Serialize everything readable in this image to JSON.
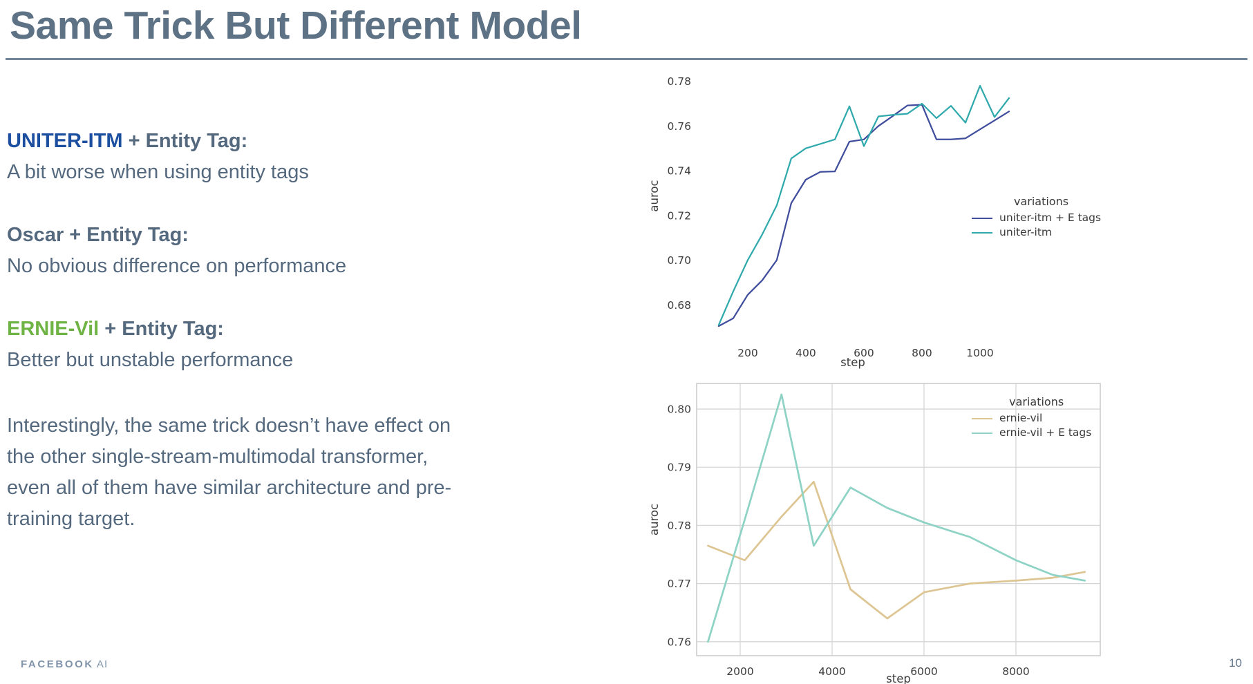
{
  "slide": {
    "title": "Same Trick But Different Model",
    "page_number": "10",
    "footer_brand_bold": "FACEBOOK",
    "footer_brand_light": "AI",
    "accent_colors": {
      "title_slate": "#5e7286",
      "uniter_blue": "#1d4fa0",
      "ernie_green": "#6fb344",
      "body_slate": "#54687e",
      "rule_gray": "#71869a"
    }
  },
  "text_blocks": [
    {
      "model": "UNITER-ITM",
      "heading_rest": " + Entity Tag:",
      "body": "A bit worse when using entity tags"
    },
    {
      "model": "Oscar",
      "heading_rest": " + Entity Tag:",
      "body": "No obvious difference on performance"
    },
    {
      "model": "ERNIE-Vil",
      "heading_rest": " + Entity Tag:",
      "body": "Better but unstable performance"
    }
  ],
  "paragraph": "Interestingly, the same trick doesn’t have effect on the other single-stream-multimodal transformer, even all of them have similar architecture and pre-training target.",
  "chart_data": [
    {
      "id": "uniter-chart",
      "type": "line",
      "title": "",
      "xlabel": "step",
      "ylabel": "auroc",
      "xlim": [
        24,
        1100
      ],
      "ylim": [
        0.6705,
        0.787
      ],
      "grid": false,
      "legend_position": "center right",
      "xticks": [
        {
          "v": 200,
          "t": "200"
        },
        {
          "v": 400,
          "t": "400"
        },
        {
          "v": 600,
          "t": "600"
        },
        {
          "v": 800,
          "t": "800"
        },
        {
          "v": 1000,
          "t": "1000"
        }
      ],
      "yticks": [
        {
          "v": 0.68,
          "t": "0.68"
        },
        {
          "v": 0.7,
          "t": "0.70"
        },
        {
          "v": 0.72,
          "t": "0.72"
        },
        {
          "v": 0.74,
          "t": "0.74"
        },
        {
          "v": 0.76,
          "t": "0.76"
        },
        {
          "v": 0.78,
          "t": "0.78"
        }
      ],
      "legend": {
        "title": "variations",
        "entries": [
          {
            "label": "uniter-itm + E tags",
            "color": "#3f4d9c"
          },
          {
            "label": "uniter-itm",
            "color": "#2fa9ac"
          }
        ]
      },
      "series": [
        {
          "name": "uniter-itm + E tags",
          "color": "#3f4d9c",
          "x": [
            100,
            150,
            200,
            250,
            300,
            350,
            400,
            450,
            500,
            550,
            600,
            650,
            700,
            750,
            800,
            850,
            900,
            950,
            1000,
            1050,
            1100
          ],
          "y": [
            0.6705,
            0.674,
            0.6845,
            0.691,
            0.7,
            0.7255,
            0.736,
            0.7395,
            0.7397,
            0.753,
            0.754,
            0.76,
            0.7645,
            0.7692,
            0.7695,
            0.754,
            0.754,
            0.7545,
            0.7585,
            0.7625,
            0.7665
          ]
        },
        {
          "name": "uniter-itm",
          "color": "#2fa9ac",
          "x": [
            100,
            150,
            200,
            250,
            300,
            350,
            400,
            450,
            500,
            550,
            600,
            650,
            700,
            750,
            800,
            850,
            900,
            950,
            1000,
            1050,
            1100
          ],
          "y": [
            0.671,
            0.686,
            0.7,
            0.7115,
            0.7245,
            0.7455,
            0.75,
            0.752,
            0.754,
            0.7688,
            0.751,
            0.7643,
            0.765,
            0.7655,
            0.77,
            0.7635,
            0.769,
            0.7615,
            0.778,
            0.764,
            0.7725
          ]
        }
      ]
    },
    {
      "id": "ernie-chart",
      "type": "line",
      "title": "",
      "xlabel": "step",
      "ylabel": "auroc",
      "xlim": [
        1053,
        9835
      ],
      "ylim": [
        0.7576,
        0.8044
      ],
      "grid": true,
      "legend_position": "upper right",
      "xticks": [
        {
          "v": 2000,
          "t": "2000"
        },
        {
          "v": 4000,
          "t": "4000"
        },
        {
          "v": 6000,
          "t": "6000"
        },
        {
          "v": 8000,
          "t": "8000"
        }
      ],
      "yticks": [
        {
          "v": 0.76,
          "t": "0.76"
        },
        {
          "v": 0.77,
          "t": "0.77"
        },
        {
          "v": 0.78,
          "t": "0.78"
        },
        {
          "v": 0.79,
          "t": "0.79"
        },
        {
          "v": 0.8,
          "t": "0.80"
        }
      ],
      "legend": {
        "title": "variations",
        "entries": [
          {
            "label": "ernie-vil",
            "color": "#ddc693"
          },
          {
            "label": "ernie-vil + E tags",
            "color": "#8ed3c5"
          }
        ]
      },
      "series": [
        {
          "name": "ernie-vil",
          "color": "#ddc693",
          "x": [
            1300,
            2100,
            2900,
            3600,
            4400,
            5200,
            6000,
            7000,
            8000,
            8800,
            9500
          ],
          "y": [
            0.7765,
            0.774,
            0.7815,
            0.7875,
            0.769,
            0.764,
            0.7685,
            0.77,
            0.7705,
            0.771,
            0.772
          ]
        },
        {
          "name": "ernie-vil + E tags",
          "color": "#8ed3c5",
          "x": [
            1300,
            2100,
            2900,
            3600,
            4400,
            5200,
            6000,
            7000,
            8000,
            8800,
            9500
          ],
          "y": [
            0.76,
            0.781,
            0.8025,
            0.7765,
            0.7865,
            0.783,
            0.7805,
            0.778,
            0.774,
            0.7715,
            0.7705
          ]
        }
      ]
    }
  ]
}
